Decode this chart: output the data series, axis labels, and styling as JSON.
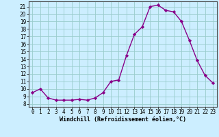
{
  "hours": [
    0,
    1,
    2,
    3,
    4,
    5,
    6,
    7,
    8,
    9,
    10,
    11,
    12,
    13,
    14,
    15,
    16,
    17,
    18,
    19,
    20,
    21,
    22,
    23
  ],
  "windchill": [
    9.5,
    10.0,
    8.8,
    8.5,
    8.5,
    8.5,
    8.6,
    8.5,
    8.8,
    9.5,
    11.0,
    11.2,
    14.5,
    17.3,
    18.3,
    21.0,
    21.2,
    20.5,
    20.3,
    19.0,
    16.5,
    13.8,
    11.8,
    10.8
  ],
  "line_color": "#880088",
  "marker": "D",
  "marker_size": 2.2,
  "bg_color": "#cceeff",
  "grid_color": "#99cccc",
  "xlabel": "Windchill (Refroidissement éolien,°C)",
  "ylabel_ticks": [
    8,
    9,
    10,
    11,
    12,
    13,
    14,
    15,
    16,
    17,
    18,
    19,
    20,
    21
  ],
  "ylim": [
    7.6,
    21.7
  ],
  "xlim": [
    -0.5,
    23.5
  ],
  "tick_fontsize": 5.5,
  "xlabel_fontsize": 6.0,
  "linewidth": 1.0
}
